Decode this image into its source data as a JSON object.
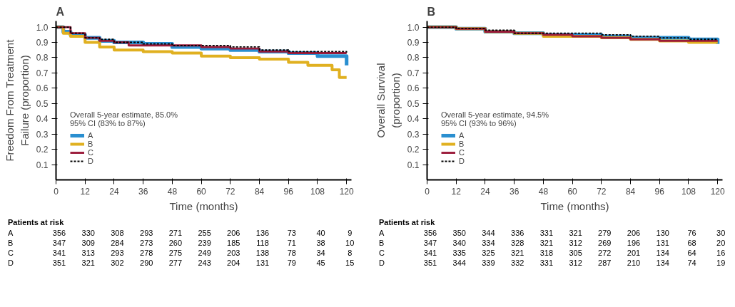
{
  "chart_data": [
    {
      "type": "step",
      "title": "A",
      "xlabel": "Time (months)",
      "ylabel": "Freedom From Treatment\nFailure (proportion)",
      "xlim": [
        0,
        122
      ],
      "ylim": [
        0,
        1.04
      ],
      "xticks": [
        0,
        12,
        24,
        36,
        48,
        60,
        72,
        84,
        96,
        108,
        120
      ],
      "yticks": [
        0.1,
        0.2,
        0.3,
        0.4,
        0.5,
        0.6,
        0.7,
        0.8,
        0.9,
        {
          "value": 1,
          "label": "1.0"
        }
      ],
      "grid": false,
      "legend": "bottom left",
      "marker": "none",
      "series": [
        {
          "name": "A",
          "color": "#2a8fd0",
          "line_style": "solid",
          "x": [
            0,
            3,
            6,
            12,
            18,
            24,
            36,
            48,
            60,
            72,
            84,
            96,
            108,
            119,
            120
          ],
          "values": [
            1.0,
            0.97,
            0.95,
            0.93,
            0.91,
            0.9,
            0.89,
            0.87,
            0.86,
            0.85,
            0.84,
            0.83,
            0.81,
            0.81,
            0.75
          ]
        },
        {
          "name": "B",
          "color": "#e0b020",
          "line_style": "solid",
          "x": [
            0,
            3,
            6,
            12,
            18,
            24,
            36,
            48,
            60,
            72,
            84,
            96,
            104,
            114,
            117,
            120
          ],
          "values": [
            1.0,
            0.96,
            0.94,
            0.9,
            0.87,
            0.85,
            0.84,
            0.83,
            0.81,
            0.8,
            0.79,
            0.77,
            0.75,
            0.72,
            0.67,
            0.67
          ]
        },
        {
          "name": "C",
          "color": "#9b1b3a",
          "line_style": "solid",
          "x": [
            0,
            6,
            12,
            18,
            24,
            30,
            48,
            60,
            72,
            84,
            96,
            108,
            120
          ],
          "values": [
            1.0,
            0.96,
            0.93,
            0.91,
            0.9,
            0.88,
            0.88,
            0.87,
            0.86,
            0.84,
            0.83,
            0.83,
            0.83
          ]
        },
        {
          "name": "D",
          "color": "#000000",
          "line_style": "dashed",
          "x": [
            0,
            6,
            12,
            18,
            24,
            36,
            48,
            60,
            72,
            84,
            96,
            108,
            120
          ],
          "values": [
            1.0,
            0.96,
            0.93,
            0.92,
            0.9,
            0.89,
            0.88,
            0.88,
            0.87,
            0.85,
            0.84,
            0.84,
            0.83
          ]
        }
      ],
      "annotations": [
        "Overall 5-year estimate, 85.0%",
        "95% CI (83% to 87%)",
        "Patients at risk",
        "A 356 330 308 293 271 255 206 136 73 40 9",
        "B 347 309 284 273 260 239 185 118 71 38 10",
        "C 341 313 293 278 275 249 203 138 78 34 8",
        "D 351 321 302 290 277 243 204 131 79 45 15"
      ]
    },
    {
      "type": "step",
      "title": "B",
      "xlabel": "Time (months)",
      "ylabel": "Overall Survival\n(proportion)",
      "xlim": [
        0,
        122
      ],
      "ylim": [
        0,
        1.04
      ],
      "xticks": [
        0,
        12,
        24,
        36,
        48,
        60,
        72,
        84,
        96,
        108,
        120
      ],
      "yticks": [
        0.1,
        0.2,
        0.3,
        0.4,
        0.5,
        0.6,
        0.7,
        0.8,
        0.9,
        {
          "value": 1,
          "label": "1.0"
        }
      ],
      "grid": false,
      "legend": "bottom left",
      "marker": "none",
      "series": [
        {
          "name": "A",
          "color": "#2a8fd0",
          "line_style": "solid",
          "x": [
            0,
            12,
            24,
            36,
            48,
            60,
            72,
            84,
            96,
            108,
            119,
            120
          ],
          "values": [
            1.0,
            0.99,
            0.97,
            0.96,
            0.95,
            0.95,
            0.94,
            0.93,
            0.93,
            0.92,
            0.92,
            0.89
          ]
        },
        {
          "name": "B",
          "color": "#e0b020",
          "line_style": "solid",
          "x": [
            0,
            12,
            24,
            36,
            48,
            60,
            72,
            84,
            96,
            108,
            120
          ],
          "values": [
            1.0,
            0.99,
            0.97,
            0.96,
            0.94,
            0.94,
            0.93,
            0.92,
            0.91,
            0.9,
            0.9
          ]
        },
        {
          "name": "C",
          "color": "#9b1b3a",
          "line_style": "solid",
          "x": [
            0,
            12,
            24,
            36,
            48,
            60,
            72,
            84,
            96,
            108,
            120
          ],
          "values": [
            1.0,
            0.99,
            0.97,
            0.96,
            0.95,
            0.94,
            0.93,
            0.92,
            0.91,
            0.91,
            0.91
          ]
        },
        {
          "name": "D",
          "color": "#000000",
          "line_style": "dashed",
          "x": [
            0,
            12,
            24,
            36,
            48,
            60,
            72,
            84,
            96,
            108,
            120
          ],
          "values": [
            1.0,
            0.99,
            0.98,
            0.96,
            0.96,
            0.96,
            0.95,
            0.94,
            0.93,
            0.92,
            0.92
          ]
        }
      ],
      "annotations": [
        "Overall 5-year estimate, 94.5%",
        "95% CI (93% to 96%)",
        "Patients at risk",
        "A 356 350 344 336 331 321 279 206 130 76 30",
        "B 347 340 334 328 321 312 269 196 131 68 20",
        "C 341 335 325 321 318 305 272 201 134 64 16",
        "D 351 344 339 332 331 312 287 210 134 74 19"
      ]
    }
  ]
}
